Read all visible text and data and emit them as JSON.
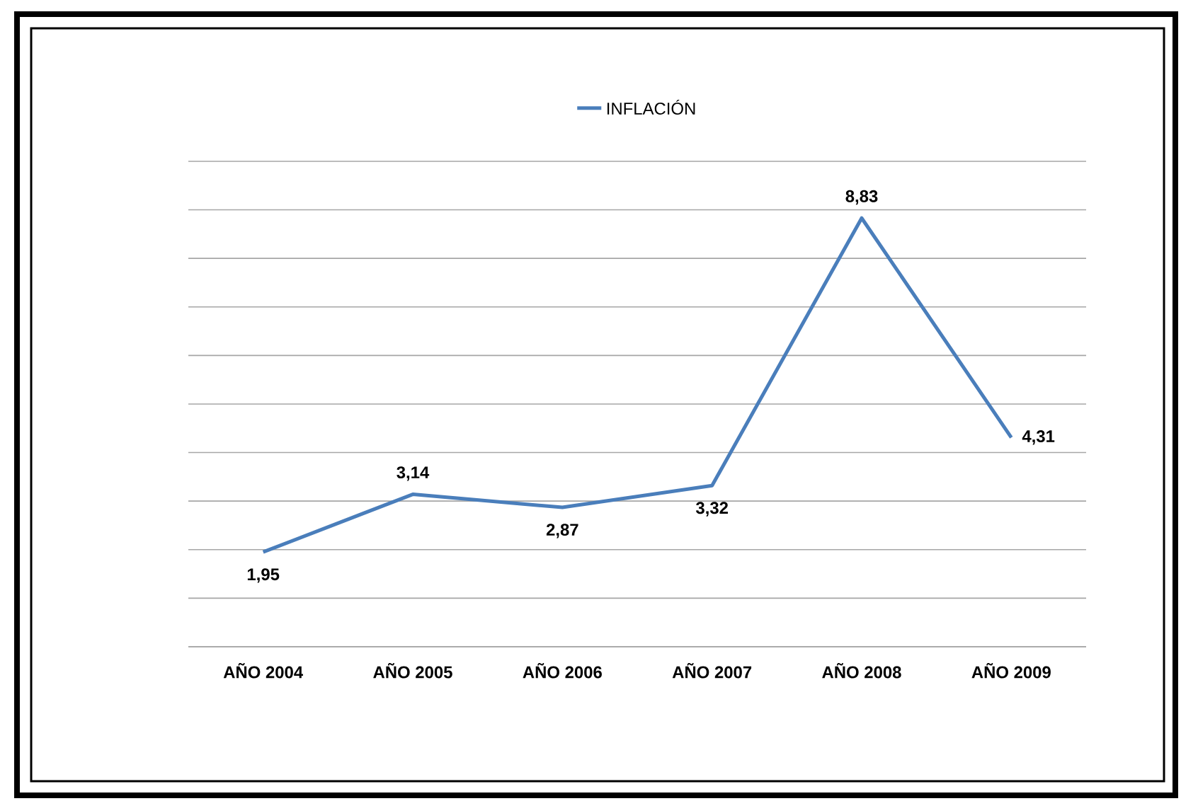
{
  "chart_data": {
    "type": "line",
    "categories": [
      "AÑO 2004",
      "AÑO 2005",
      "AÑO 2006",
      "AÑO 2007",
      "AÑO 2008",
      "AÑO 2009"
    ],
    "series": [
      {
        "name": "INFLACIÓN",
        "color": "#4a7ebb",
        "values": [
          1.95,
          3.14,
          2.87,
          3.32,
          8.83,
          4.31
        ],
        "value_labels": [
          "1,95",
          "3,14",
          "2,87",
          "3,32",
          "8,83",
          "4,31"
        ]
      }
    ],
    "ylim": [
      0,
      10
    ],
    "yticks": [
      {
        "value": 0,
        "label": null
      },
      {
        "value": 1,
        "label": null
      },
      {
        "value": 2,
        "label": null
      },
      {
        "value": 3,
        "label": null
      },
      {
        "value": 4,
        "label": null
      },
      {
        "value": 5,
        "label": null
      },
      {
        "value": 6,
        "label": null
      },
      {
        "value": 7,
        "label": null
      },
      {
        "value": 8,
        "label": null
      },
      {
        "value": 9,
        "label": null
      },
      {
        "value": 10,
        "label": null
      }
    ],
    "grid": "y",
    "legend": "top",
    "tick_labels": "x",
    "marker": "none",
    "line_style": "solid"
  }
}
